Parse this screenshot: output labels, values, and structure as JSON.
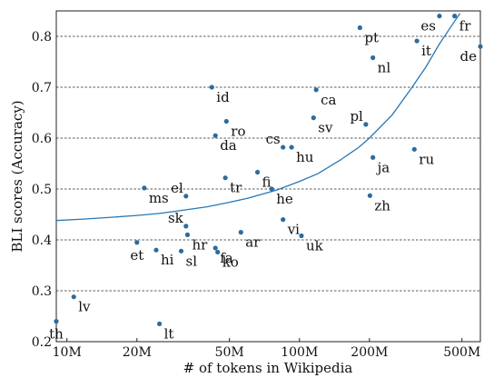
{
  "chart_data": {
    "type": "scatter",
    "xlabel": "# of tokens in Wikipedia",
    "ylabel": "BLI scores (Accuracy)",
    "x_scale": "log",
    "xlim": [
      9000000,
      600000000
    ],
    "ylim": [
      0.2,
      0.85
    ],
    "x_ticks": [
      {
        "value": 10000000,
        "label": "10M"
      },
      {
        "value": 20000000,
        "label": "20M"
      },
      {
        "value": 50000000,
        "label": "50M"
      },
      {
        "value": 100000000,
        "label": "100M"
      },
      {
        "value": 200000000,
        "label": "200M"
      },
      {
        "value": 500000000,
        "label": "500M"
      }
    ],
    "y_ticks": [
      {
        "value": 0.2,
        "label": "0.2"
      },
      {
        "value": 0.3,
        "label": "0.3"
      },
      {
        "value": 0.4,
        "label": "0.4"
      },
      {
        "value": 0.5,
        "label": "0.5"
      },
      {
        "value": 0.6,
        "label": "0.6"
      },
      {
        "value": 0.7,
        "label": "0.7"
      },
      {
        "value": 0.8,
        "label": "0.8"
      }
    ],
    "grid": "horizontal-dotted",
    "point_color": "#2d6b9e",
    "curve_color": "#2878b5",
    "points": [
      {
        "label": "th",
        "x": 9000000,
        "y": 0.24,
        "pos": "below"
      },
      {
        "label": "lv",
        "x": 10700000,
        "y": 0.288,
        "pos": "below-right"
      },
      {
        "label": "et",
        "x": 20000000,
        "y": 0.395,
        "pos": "below"
      },
      {
        "label": "ms",
        "x": 21500000,
        "y": 0.502,
        "pos": "below-right"
      },
      {
        "label": "hi",
        "x": 24200000,
        "y": 0.38,
        "pos": "below-right"
      },
      {
        "label": "lt",
        "x": 25000000,
        "y": 0.235,
        "pos": "below-right"
      },
      {
        "label": "sl",
        "x": 31000000,
        "y": 0.378,
        "pos": "below-right"
      },
      {
        "label": "el",
        "x": 32500000,
        "y": 0.486,
        "pos": "above-left"
      },
      {
        "label": "sk",
        "x": 32500000,
        "y": 0.427,
        "pos": "above-left"
      },
      {
        "label": "hr",
        "x": 33000000,
        "y": 0.41,
        "pos": "below-right"
      },
      {
        "label": "id",
        "x": 42000000,
        "y": 0.7,
        "pos": "below-right"
      },
      {
        "label": "da",
        "x": 43500000,
        "y": 0.605,
        "pos": "below-right"
      },
      {
        "label": "fa",
        "x": 43500000,
        "y": 0.384,
        "pos": "below-right"
      },
      {
        "label": "ko",
        "x": 44500000,
        "y": 0.376,
        "pos": "below-right"
      },
      {
        "label": "ro",
        "x": 48500000,
        "y": 0.633,
        "pos": "below-right"
      },
      {
        "label": "tr",
        "x": 48000000,
        "y": 0.522,
        "pos": "below-right"
      },
      {
        "label": "ar",
        "x": 56000000,
        "y": 0.415,
        "pos": "below-right"
      },
      {
        "label": "fi",
        "x": 66000000,
        "y": 0.533,
        "pos": "below-right"
      },
      {
        "label": "he",
        "x": 76000000,
        "y": 0.5,
        "pos": "below-right"
      },
      {
        "label": "cs",
        "x": 85000000,
        "y": 0.582,
        "pos": "above-left"
      },
      {
        "label": "vi",
        "x": 85000000,
        "y": 0.44,
        "pos": "below-right"
      },
      {
        "label": "hu",
        "x": 92500000,
        "y": 0.582,
        "pos": "below-right"
      },
      {
        "label": "uk",
        "x": 102000000,
        "y": 0.408,
        "pos": "below-right"
      },
      {
        "label": "sv",
        "x": 115000000,
        "y": 0.64,
        "pos": "below-right"
      },
      {
        "label": "ca",
        "x": 118000000,
        "y": 0.695,
        "pos": "below-right"
      },
      {
        "label": "pl",
        "x": 193000000,
        "y": 0.627,
        "pos": "above-left"
      },
      {
        "label": "zh",
        "x": 201000000,
        "y": 0.487,
        "pos": "below-right"
      },
      {
        "label": "ja",
        "x": 207000000,
        "y": 0.562,
        "pos": "below-right"
      },
      {
        "label": "pt",
        "x": 182000000,
        "y": 0.817,
        "pos": "below-right"
      },
      {
        "label": "nl",
        "x": 207000000,
        "y": 0.758,
        "pos": "below-right"
      },
      {
        "label": "ru",
        "x": 312000000,
        "y": 0.578,
        "pos": "below-right"
      },
      {
        "label": "it",
        "x": 320000000,
        "y": 0.791,
        "pos": "below-right"
      },
      {
        "label": "es",
        "x": 400000000,
        "y": 0.84,
        "pos": "below-left"
      },
      {
        "label": "fr",
        "x": 465000000,
        "y": 0.84,
        "pos": "below-right"
      },
      {
        "label": "de",
        "x": 600000000,
        "y": 0.78,
        "pos": "below-left"
      }
    ],
    "fit_curve": [
      {
        "x": 9000000,
        "y": 0.438
      },
      {
        "x": 12000000,
        "y": 0.441
      },
      {
        "x": 15000000,
        "y": 0.444
      },
      {
        "x": 20000000,
        "y": 0.448
      },
      {
        "x": 25000000,
        "y": 0.452
      },
      {
        "x": 30000000,
        "y": 0.457
      },
      {
        "x": 40000000,
        "y": 0.465
      },
      {
        "x": 50000000,
        "y": 0.474
      },
      {
        "x": 60000000,
        "y": 0.482
      },
      {
        "x": 80000000,
        "y": 0.498
      },
      {
        "x": 100000000,
        "y": 0.515
      },
      {
        "x": 120000000,
        "y": 0.53
      },
      {
        "x": 150000000,
        "y": 0.557
      },
      {
        "x": 180000000,
        "y": 0.582
      },
      {
        "x": 200000000,
        "y": 0.6
      },
      {
        "x": 250000000,
        "y": 0.645
      },
      {
        "x": 300000000,
        "y": 0.695
      },
      {
        "x": 350000000,
        "y": 0.74
      },
      {
        "x": 400000000,
        "y": 0.785
      },
      {
        "x": 450000000,
        "y": 0.82
      },
      {
        "x": 490000000,
        "y": 0.845
      }
    ]
  }
}
